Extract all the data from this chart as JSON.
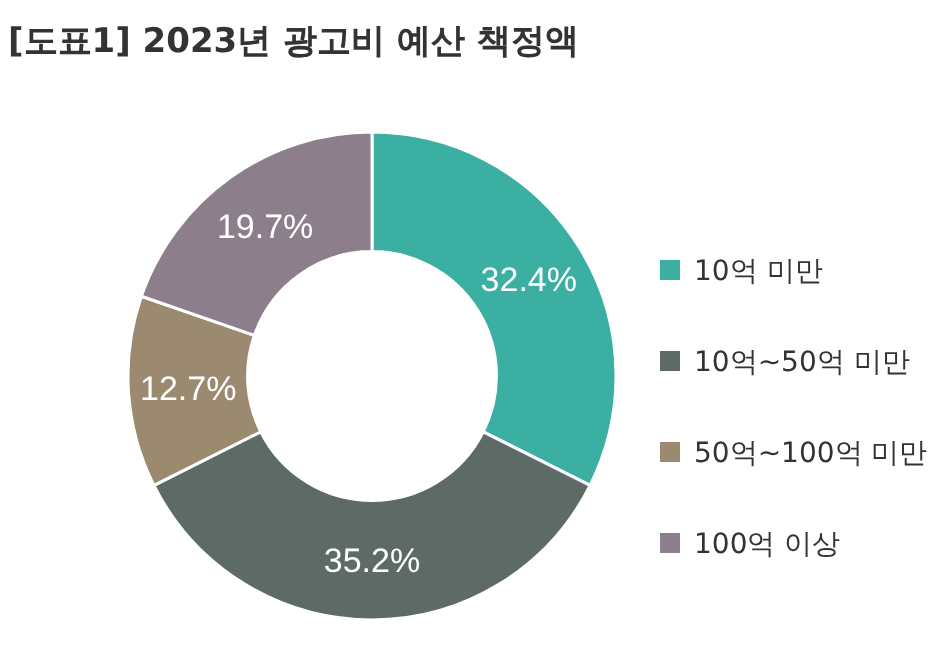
{
  "chart_data": {
    "type": "donut",
    "title": "[도표1] 2023년 광고비 예산 책정액",
    "categories": [
      "10억 미만",
      "10억~50억 미만",
      "50억~100억 미만",
      "100억 이상"
    ],
    "values": [
      32.4,
      35.2,
      12.7,
      19.7
    ],
    "colors": [
      "#3aafa2",
      "#5e6a66",
      "#9c8a70",
      "#8c7f8b"
    ],
    "value_labels": [
      "32.4%",
      "35.2%",
      "12.7%",
      "19.7%"
    ],
    "legend": "right"
  }
}
